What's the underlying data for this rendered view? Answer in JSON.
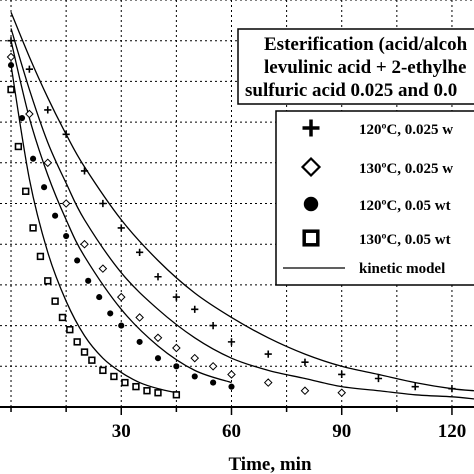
{
  "chart_data": {
    "type": "scatter",
    "xlabel": "Time, min",
    "ylabel": "",
    "xlim": [
      -3,
      126
    ],
    "ylim": [
      0,
      1.0
    ],
    "x_ticks": [
      30,
      60,
      90,
      120
    ],
    "grid": true,
    "legend_position": "right",
    "annotation": [
      "Esterification (acid/alcoh",
      "levulinic acid +  2-ethylhe",
      "sulfuric acid 0.025 and 0.0"
    ],
    "series": [
      {
        "name": "120ºC, 0.025 w",
        "marker": "plus",
        "x": [
          0,
          5,
          10,
          15,
          20,
          25,
          30,
          35,
          40,
          45,
          50,
          55,
          60,
          70,
          80,
          90,
          100,
          110,
          120
        ],
        "y": [
          0.9,
          0.83,
          0.73,
          0.67,
          0.58,
          0.5,
          0.44,
          0.38,
          0.32,
          0.27,
          0.24,
          0.2,
          0.16,
          0.13,
          0.11,
          0.08,
          0.07,
          0.05,
          0.045
        ]
      },
      {
        "name": "130ºC, 0.025 w",
        "marker": "diamond",
        "x": [
          0,
          5,
          10,
          15,
          20,
          25,
          30,
          35,
          40,
          45,
          50,
          55,
          60,
          70,
          80,
          90
        ],
        "y": [
          0.86,
          0.72,
          0.6,
          0.5,
          0.4,
          0.34,
          0.27,
          0.22,
          0.17,
          0.145,
          0.12,
          0.1,
          0.08,
          0.06,
          0.04,
          0.035
        ]
      },
      {
        "name": "120ºC, 0.05 wt",
        "marker": "circle",
        "x": [
          0,
          3,
          6,
          9,
          12,
          15,
          18,
          21,
          24,
          27,
          30,
          35,
          40,
          45,
          50,
          55,
          60
        ],
        "y": [
          0.84,
          0.71,
          0.61,
          0.54,
          0.47,
          0.42,
          0.36,
          0.31,
          0.27,
          0.23,
          0.2,
          0.16,
          0.12,
          0.1,
          0.075,
          0.06,
          0.05
        ]
      },
      {
        "name": "130ºC, 0.05 wt",
        "marker": "square",
        "x": [
          0,
          2,
          4,
          6,
          8,
          10,
          12,
          14,
          16,
          18,
          20,
          22,
          25,
          28,
          31,
          34,
          37,
          40,
          45
        ],
        "y": [
          0.78,
          0.64,
          0.53,
          0.44,
          0.37,
          0.31,
          0.26,
          0.22,
          0.19,
          0.16,
          0.135,
          0.115,
          0.09,
          0.075,
          0.06,
          0.05,
          0.04,
          0.035,
          0.03
        ]
      }
    ],
    "model_label": "kinetic model",
    "model_curves": [
      {
        "x": [
          0,
          5,
          10,
          15,
          20,
          30,
          40,
          50,
          60,
          70,
          80,
          90,
          100,
          110,
          120,
          126
        ],
        "y": [
          0.97,
          0.86,
          0.76,
          0.67,
          0.59,
          0.46,
          0.36,
          0.28,
          0.22,
          0.17,
          0.13,
          0.1,
          0.08,
          0.06,
          0.045,
          0.04
        ]
      },
      {
        "x": [
          0,
          5,
          10,
          15,
          20,
          30,
          40,
          50,
          60,
          70,
          80,
          90,
          100,
          110,
          120,
          126
        ],
        "y": [
          0.93,
          0.78,
          0.65,
          0.55,
          0.46,
          0.33,
          0.24,
          0.17,
          0.12,
          0.09,
          0.07,
          0.05,
          0.04,
          0.03,
          0.025,
          0.02
        ]
      },
      {
        "x": [
          0,
          5,
          10,
          15,
          20,
          30,
          40,
          50,
          60
        ],
        "y": [
          0.9,
          0.71,
          0.57,
          0.46,
          0.37,
          0.24,
          0.15,
          0.09,
          0.06
        ]
      },
      {
        "x": [
          0,
          5,
          10,
          15,
          20,
          25,
          30,
          35,
          40,
          45
        ],
        "y": [
          0.84,
          0.56,
          0.38,
          0.26,
          0.175,
          0.12,
          0.085,
          0.06,
          0.045,
          0.035
        ]
      }
    ]
  }
}
